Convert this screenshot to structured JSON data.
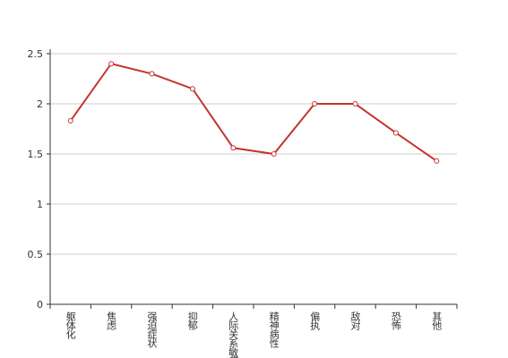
{
  "chart_data": {
    "type": "line",
    "categories": [
      "躯体化",
      "焦虑",
      "强迫症状",
      "抑郁",
      "人际关系敏感",
      "精神病性",
      "偏执",
      "敌对",
      "恐怖",
      "其他"
    ],
    "series": [
      {
        "color": "#c23531",
        "values": [
          1.83,
          2.4,
          2.3,
          2.15,
          1.56,
          1.5,
          2.0,
          2.0,
          1.71,
          1.43
        ]
      }
    ],
    "ylim": [
      0,
      2.5
    ],
    "yticks": [
      0,
      0.5,
      1,
      1.5,
      2,
      2.5
    ],
    "grid": true
  }
}
